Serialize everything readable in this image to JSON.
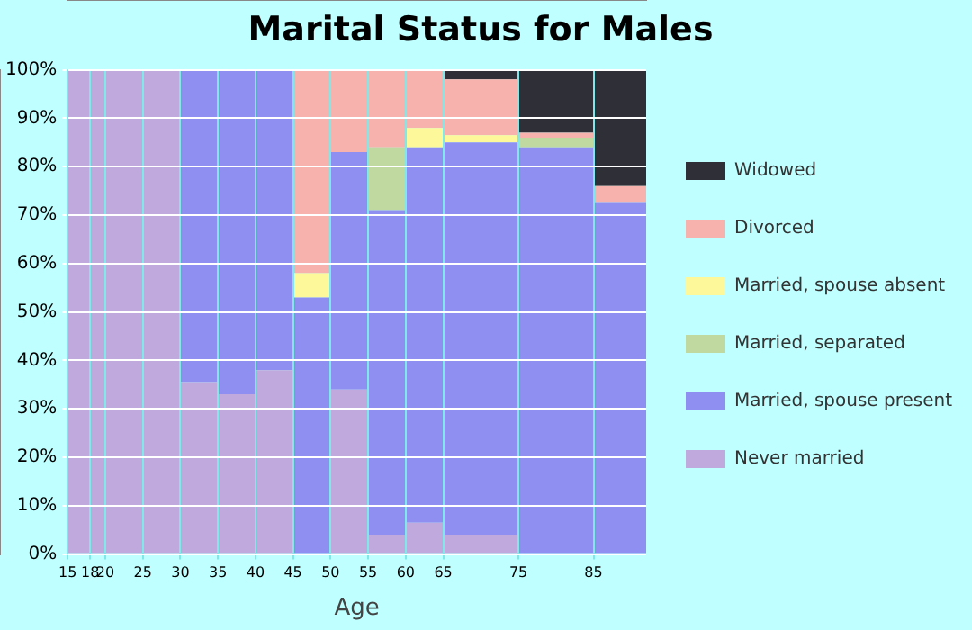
{
  "chart_data": {
    "type": "bar",
    "title": "Marital Status for Males",
    "xlabel": "Age",
    "stacked": true,
    "x": [
      16.5,
      19,
      22.5,
      27.5,
      32.5,
      37.5,
      42.5,
      47.5,
      52.5,
      57.5,
      62.5,
      70,
      80,
      88.5
    ],
    "xlim": [
      15,
      92
    ],
    "xticks": [
      15,
      18,
      20,
      25,
      30,
      35,
      40,
      45,
      50,
      55,
      60,
      65,
      75,
      85
    ],
    "ylim": [
      0,
      100
    ],
    "yticks": [
      {
        "value": 0,
        "label": "0%"
      },
      {
        "value": 10,
        "label": "10%"
      },
      {
        "value": 20,
        "label": "20%"
      },
      {
        "value": 30,
        "label": "30%"
      },
      {
        "value": 40,
        "label": "40%"
      },
      {
        "value": 50,
        "label": "50%"
      },
      {
        "value": 60,
        "label": "60%"
      },
      {
        "value": 70,
        "label": "70%"
      },
      {
        "value": 80,
        "label": "80%"
      },
      {
        "value": 90,
        "label": "90%"
      },
      {
        "value": 100,
        "label": "100%"
      }
    ],
    "grid": true,
    "legend": "right",
    "series": [
      {
        "name": "Never married",
        "color": "#c0aadd",
        "values": [
          100,
          100,
          100,
          100,
          35.5,
          33,
          38,
          0,
          34,
          4,
          6.5,
          4,
          0,
          0
        ]
      },
      {
        "name": "Married, spouse present",
        "color": "#8f8ff2",
        "values": [
          0,
          0,
          0,
          0,
          64.5,
          67,
          62,
          53,
          49,
          67,
          77.5,
          81,
          84,
          72.5
        ]
      },
      {
        "name": "Married, separated",
        "color": "#c0d9a0",
        "values": [
          0,
          0,
          0,
          0,
          0,
          0,
          0,
          0,
          0,
          13,
          0,
          0,
          2,
          0
        ]
      },
      {
        "name": "Married, spouse absent",
        "color": "#fdf89a",
        "values": [
          0,
          0,
          0,
          0,
          0,
          0,
          0,
          5,
          0,
          0,
          4,
          1.5,
          0,
          0
        ]
      },
      {
        "name": "Divorced",
        "color": "#f8b2ad",
        "values": [
          0,
          0,
          0,
          0,
          0,
          0,
          0,
          42,
          17,
          16,
          12,
          11.5,
          1,
          3.5
        ]
      },
      {
        "name": "Widowed",
        "color": "#2f2f37",
        "values": [
          0,
          0,
          0,
          0,
          0,
          0,
          0,
          0,
          0,
          0,
          0,
          2,
          13,
          24
        ]
      }
    ]
  }
}
